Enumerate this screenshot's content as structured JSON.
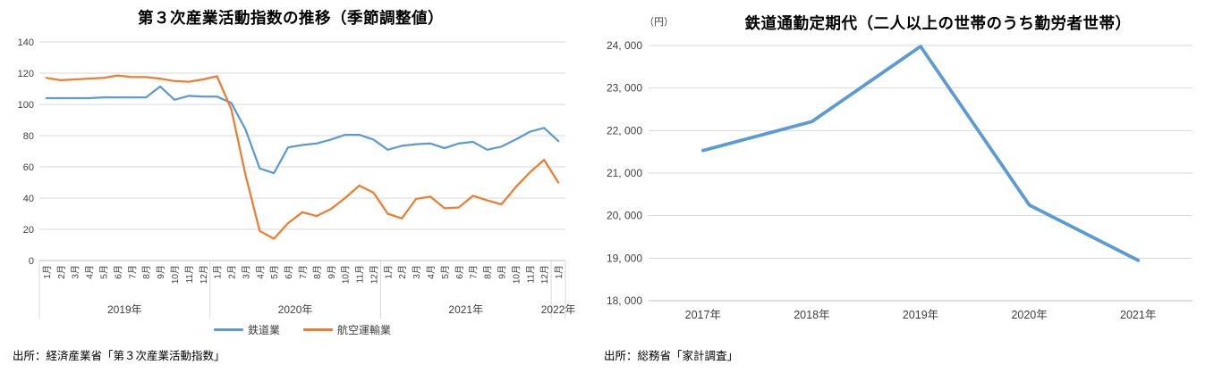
{
  "theme": {
    "background": "#FFFFFF",
    "grid_color": "#D9D9D9",
    "axis_color": "#BFBFBF",
    "label_color": "#404040",
    "blue": "#5B9BD5",
    "orange": "#ED7D31"
  },
  "chart_data": [
    {
      "type": "line",
      "title": "第３次産業活動指数の推移（季節調整値）",
      "source": "出所：経済産業省「第３次産業活動指数」",
      "ylim": [
        0,
        140
      ],
      "grid": true,
      "legend_position": "bottom",
      "yticks": [
        {
          "v": 0,
          "label": "0"
        },
        {
          "v": 20,
          "label": "20"
        },
        {
          "v": 40,
          "label": "40"
        },
        {
          "v": 60,
          "label": "60"
        },
        {
          "v": 80,
          "label": "80"
        },
        {
          "v": 100,
          "label": "100"
        },
        {
          "v": 120,
          "label": "120"
        },
        {
          "v": 140,
          "label": "140"
        }
      ],
      "x_labels": [
        "1月",
        "2月",
        "3月",
        "4月",
        "5月",
        "6月",
        "7月",
        "8月",
        "9月",
        "10月",
        "11月",
        "12月",
        "1月",
        "2月",
        "3月",
        "4月",
        "5月",
        "6月",
        "7月",
        "8月",
        "9月",
        "10月",
        "11月",
        "12月",
        "1月",
        "2月",
        "3月",
        "4月",
        "5月",
        "6月",
        "7月",
        "8月",
        "9月",
        "10月",
        "11月",
        "12月",
        "1月"
      ],
      "year_groups": [
        {
          "label": "2019年",
          "count": 12
        },
        {
          "label": "2020年",
          "count": 12
        },
        {
          "label": "2021年",
          "count": 12
        },
        {
          "label": "2022年",
          "count": 1
        }
      ],
      "series": [
        {
          "name": "鉄道業",
          "color": "#5B9BD5",
          "values": [
            104,
            104,
            104,
            104,
            104.5,
            104.5,
            104.5,
            104.5,
            111.5,
            103,
            105.5,
            105,
            105,
            101,
            84,
            59,
            56,
            72.5,
            74,
            75,
            77.5,
            80.5,
            80.5,
            77.5,
            71,
            73.5,
            74.5,
            75,
            72,
            75,
            76,
            71,
            73,
            77.5,
            82.5,
            85,
            76.5
          ]
        },
        {
          "name": "航空運輸業",
          "color": "#ED7D31",
          "values": [
            117,
            115.5,
            116,
            116.5,
            117,
            118.5,
            117.5,
            117.5,
            116.5,
            115,
            114.5,
            116,
            118,
            97,
            55,
            19,
            14,
            24,
            31,
            28.5,
            33,
            40,
            48,
            43.5,
            30,
            27,
            39.5,
            41,
            33.5,
            34,
            41.5,
            38.5,
            36,
            47,
            56.5,
            64.5,
            50
          ]
        }
      ]
    },
    {
      "type": "line",
      "title": "鉄道通勤定期代（二人以上の世帯のうち勤労者世帯）",
      "unit_label": "（円）",
      "source": "出所：総務省「家計調査」",
      "ylim": [
        18000,
        24000
      ],
      "grid": true,
      "yticks": [
        {
          "v": 18000,
          "label": "18, 000"
        },
        {
          "v": 19000,
          "label": "19, 000"
        },
        {
          "v": 20000,
          "label": "20, 000"
        },
        {
          "v": 21000,
          "label": "21, 000"
        },
        {
          "v": 22000,
          "label": "22, 000"
        },
        {
          "v": 23000,
          "label": "23, 000"
        },
        {
          "v": 24000,
          "label": "24, 000"
        }
      ],
      "x_labels": [
        "2017年",
        "2018年",
        "2019年",
        "2020年",
        "2021年"
      ],
      "series": [
        {
          "color": "#5B9BD5",
          "values": [
            21530,
            22210,
            23980,
            20250,
            18950
          ]
        }
      ]
    }
  ]
}
